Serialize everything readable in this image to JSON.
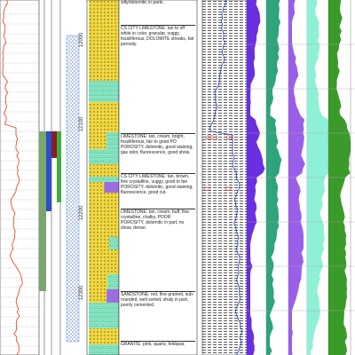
{
  "depth_labels": [
    "12000",
    "12100",
    "12200",
    "12300"
  ],
  "descriptions": [
    "silty/dolomitic in parts.",
    "CS CITY LIMESTONE: tan to off white in color, granular, vuggy, fossiliferous, DOLOMITE streaks, fair porosity.",
    "LIMESTONE: tan, cream, bright, fossiliferous, fair to good PO POROSITY, dolomitic, good staining, gas odor, fluorescence, good show.",
    "CS CITY LIMESTONE: tan, brown, fine crystalline, vuggy, good to fair POROSITY, dolomitic, good staining, fluorescence, good cut.",
    "LIMESTONE: tan, cream, buff, fine crystalline, chalky, POOR POROSITY, dolomitic in part, no show, dense.",
    "SANDSTONE: red, fine grained, sub-rounded, well sorted, shaly in part, poorly cemented.",
    "GRANITE: pink, quartz, feldspar."
  ],
  "curve_labels": [
    "CD 1",
    "C2",
    "C1",
    "C2"
  ]
}
